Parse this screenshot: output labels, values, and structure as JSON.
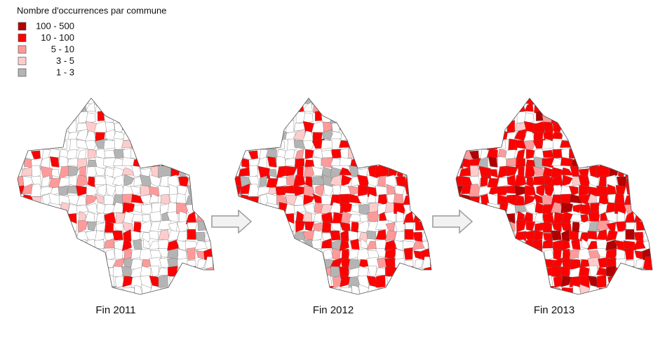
{
  "legend": {
    "title": "Nombre d'occurrences par commune",
    "items": [
      {
        "label": "100 - 500",
        "color": "#b20000"
      },
      {
        "label": "10 - 100",
        "color": "#ff0000"
      },
      {
        "label": "5 - 10",
        "color": "#ff9a9a"
      },
      {
        "label": "3 - 5",
        "color": "#ffcccc"
      },
      {
        "label": "1 - 3",
        "color": "#b4b4b4"
      }
    ]
  },
  "maps": [
    {
      "caption": "Fin 2011"
    },
    {
      "caption": "Fin 2012"
    },
    {
      "caption": "Fin 2013"
    }
  ]
}
